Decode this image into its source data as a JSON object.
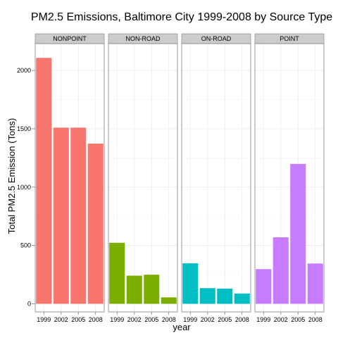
{
  "chart_data": {
    "type": "bar",
    "title": "PM2.5 Emissions, Baltimore City 1999-2008 by Source Type",
    "xlabel": "year",
    "ylabel": "Total PM2.5 Emission (Tons)",
    "categories": [
      "1999",
      "2002",
      "2005",
      "2008"
    ],
    "ylim": [
      -70,
      2230
    ],
    "yticks": [
      0,
      500,
      1000,
      1500,
      2000
    ],
    "facets": [
      {
        "label": "NONPOINT",
        "color": "#F8766D",
        "values": [
          2108,
          1510,
          1510,
          1373
        ]
      },
      {
        "label": "NON-ROAD",
        "color": "#7CAE00",
        "values": [
          523,
          241,
          249,
          55
        ]
      },
      {
        "label": "ON-ROAD",
        "color": "#00BFC4",
        "values": [
          347,
          134,
          130,
          88
        ]
      },
      {
        "label": "POINT",
        "color": "#C77CFF",
        "values": [
          297,
          570,
          1199,
          345
        ]
      }
    ],
    "grid": true,
    "legend": "none"
  }
}
